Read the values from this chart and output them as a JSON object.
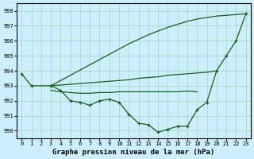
{
  "background_color": "#cceeff",
  "grid_color": "#aaddcc",
  "line_color": "#1a5c1a",
  "title": "Graphe pression niveau de la mer (hPa)",
  "hours": [
    0,
    1,
    2,
    3,
    4,
    5,
    6,
    7,
    8,
    9,
    10,
    11,
    12,
    13,
    14,
    15,
    16,
    17,
    18,
    19,
    20,
    21,
    22,
    23
  ],
  "ylim": [
    989.5,
    998.5
  ],
  "yticks": [
    990,
    991,
    992,
    993,
    994,
    995,
    996,
    997,
    998
  ],
  "line1_x": [
    0,
    1,
    3,
    4,
    5,
    6,
    7,
    8,
    9,
    10,
    11,
    12,
    13,
    14,
    15,
    16,
    17,
    18,
    19,
    20,
    21,
    22,
    23
  ],
  "line1_y": [
    993.8,
    993.0,
    993.0,
    992.7,
    992.0,
    991.9,
    991.7,
    992.0,
    992.1,
    991.9,
    991.1,
    990.5,
    990.4,
    989.9,
    990.1,
    990.3,
    990.3,
    991.4,
    991.9,
    994.0,
    995.0,
    996.0,
    997.8
  ],
  "line2_x": [
    3,
    4,
    5,
    6,
    7,
    8,
    9,
    10,
    11,
    12,
    13,
    14,
    15,
    16,
    17,
    18,
    19,
    20,
    21,
    22,
    23
  ],
  "line2_y": [
    993.0,
    993.35,
    993.7,
    994.05,
    994.4,
    994.75,
    995.1,
    995.45,
    995.8,
    996.1,
    996.4,
    996.65,
    996.9,
    997.1,
    997.3,
    997.45,
    997.55,
    997.65,
    997.7,
    997.75,
    997.8
  ],
  "line3_x": [
    3,
    4,
    5,
    6,
    7,
    8,
    9,
    10,
    11,
    12,
    13,
    14,
    15,
    16,
    17,
    18,
    19,
    20
  ],
  "line3_y": [
    993.0,
    993.05,
    993.1,
    993.15,
    993.2,
    993.25,
    993.3,
    993.35,
    993.4,
    993.5,
    993.55,
    993.6,
    993.7,
    993.75,
    993.8,
    993.85,
    993.9,
    994.0
  ],
  "line4_x": [
    3,
    4,
    5,
    6,
    7,
    8,
    9,
    10,
    11,
    12,
    13,
    14,
    15,
    16,
    17,
    18
  ],
  "line4_y": [
    992.7,
    992.6,
    992.55,
    992.5,
    992.5,
    992.55,
    992.55,
    992.6,
    992.6,
    992.6,
    992.6,
    992.6,
    992.6,
    992.6,
    992.65,
    992.6
  ]
}
